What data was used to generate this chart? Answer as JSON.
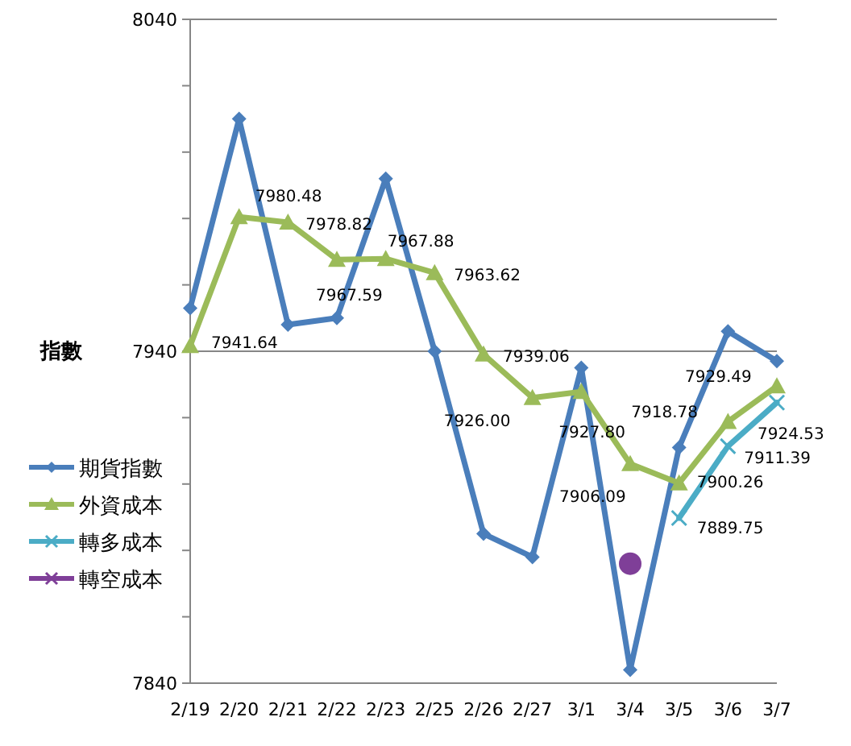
{
  "chart_data": {
    "type": "line",
    "ylabel": "指數",
    "categories": [
      "2/19",
      "2/20",
      "2/21",
      "2/22",
      "2/23",
      "2/25",
      "2/26",
      "2/27",
      "3/1",
      "3/4",
      "3/5",
      "3/6",
      "3/7"
    ],
    "ylim": [
      7840,
      8040
    ],
    "yticks": [
      7840,
      {
        "value": 7860,
        "label": null
      },
      {
        "value": 7880,
        "label": null
      },
      {
        "value": 7900,
        "label": null
      },
      {
        "value": 7920,
        "label": null
      },
      7940,
      {
        "value": 7960,
        "label": null
      },
      {
        "value": 7980,
        "label": null
      },
      {
        "value": 8000,
        "label": null
      },
      {
        "value": 8020,
        "label": null
      },
      8040
    ],
    "grid": "y",
    "legend": "left",
    "line_style": "solid",
    "series": [
      {
        "name": "期貨指數",
        "color": "#4a7ebb",
        "marker": "diamond",
        "values": [
          7953,
          8010,
          7948,
          7950,
          7992,
          7940,
          7885,
          7878,
          7935,
          7844,
          7911,
          7946,
          7937
        ]
      },
      {
        "name": "外資成本",
        "color": "#9bbb59",
        "marker": "triangle",
        "values": [
          7941.64,
          7980.48,
          7978.82,
          7967.59,
          7967.88,
          7963.62,
          7939.06,
          7926.0,
          7927.8,
          7906.09,
          7900.26,
          7918.78,
          7929.49
        ],
        "value_labels": [
          "7941.64",
          "7980.48",
          "7978.82",
          "7967.59",
          "7967.88",
          "7963.62",
          "7939.06",
          "7926.00",
          "7927.80",
          "7906.09",
          "7900.26",
          "7918.78",
          "7929.49"
        ]
      },
      {
        "name": "轉多成本",
        "color": "#4bacc6",
        "marker": "cross",
        "values": [
          null,
          null,
          null,
          null,
          null,
          null,
          null,
          null,
          null,
          null,
          7889.75,
          7911.39,
          7924.53
        ],
        "value_labels": [
          null,
          null,
          null,
          null,
          null,
          null,
          null,
          null,
          null,
          null,
          "7889.75",
          "7911.39",
          "7924.53"
        ]
      },
      {
        "name": "轉空成本",
        "color": "#7f3f98",
        "marker": "circle",
        "values": [
          null,
          null,
          null,
          null,
          null,
          null,
          null,
          null,
          null,
          7876,
          null,
          null,
          null
        ]
      }
    ]
  }
}
